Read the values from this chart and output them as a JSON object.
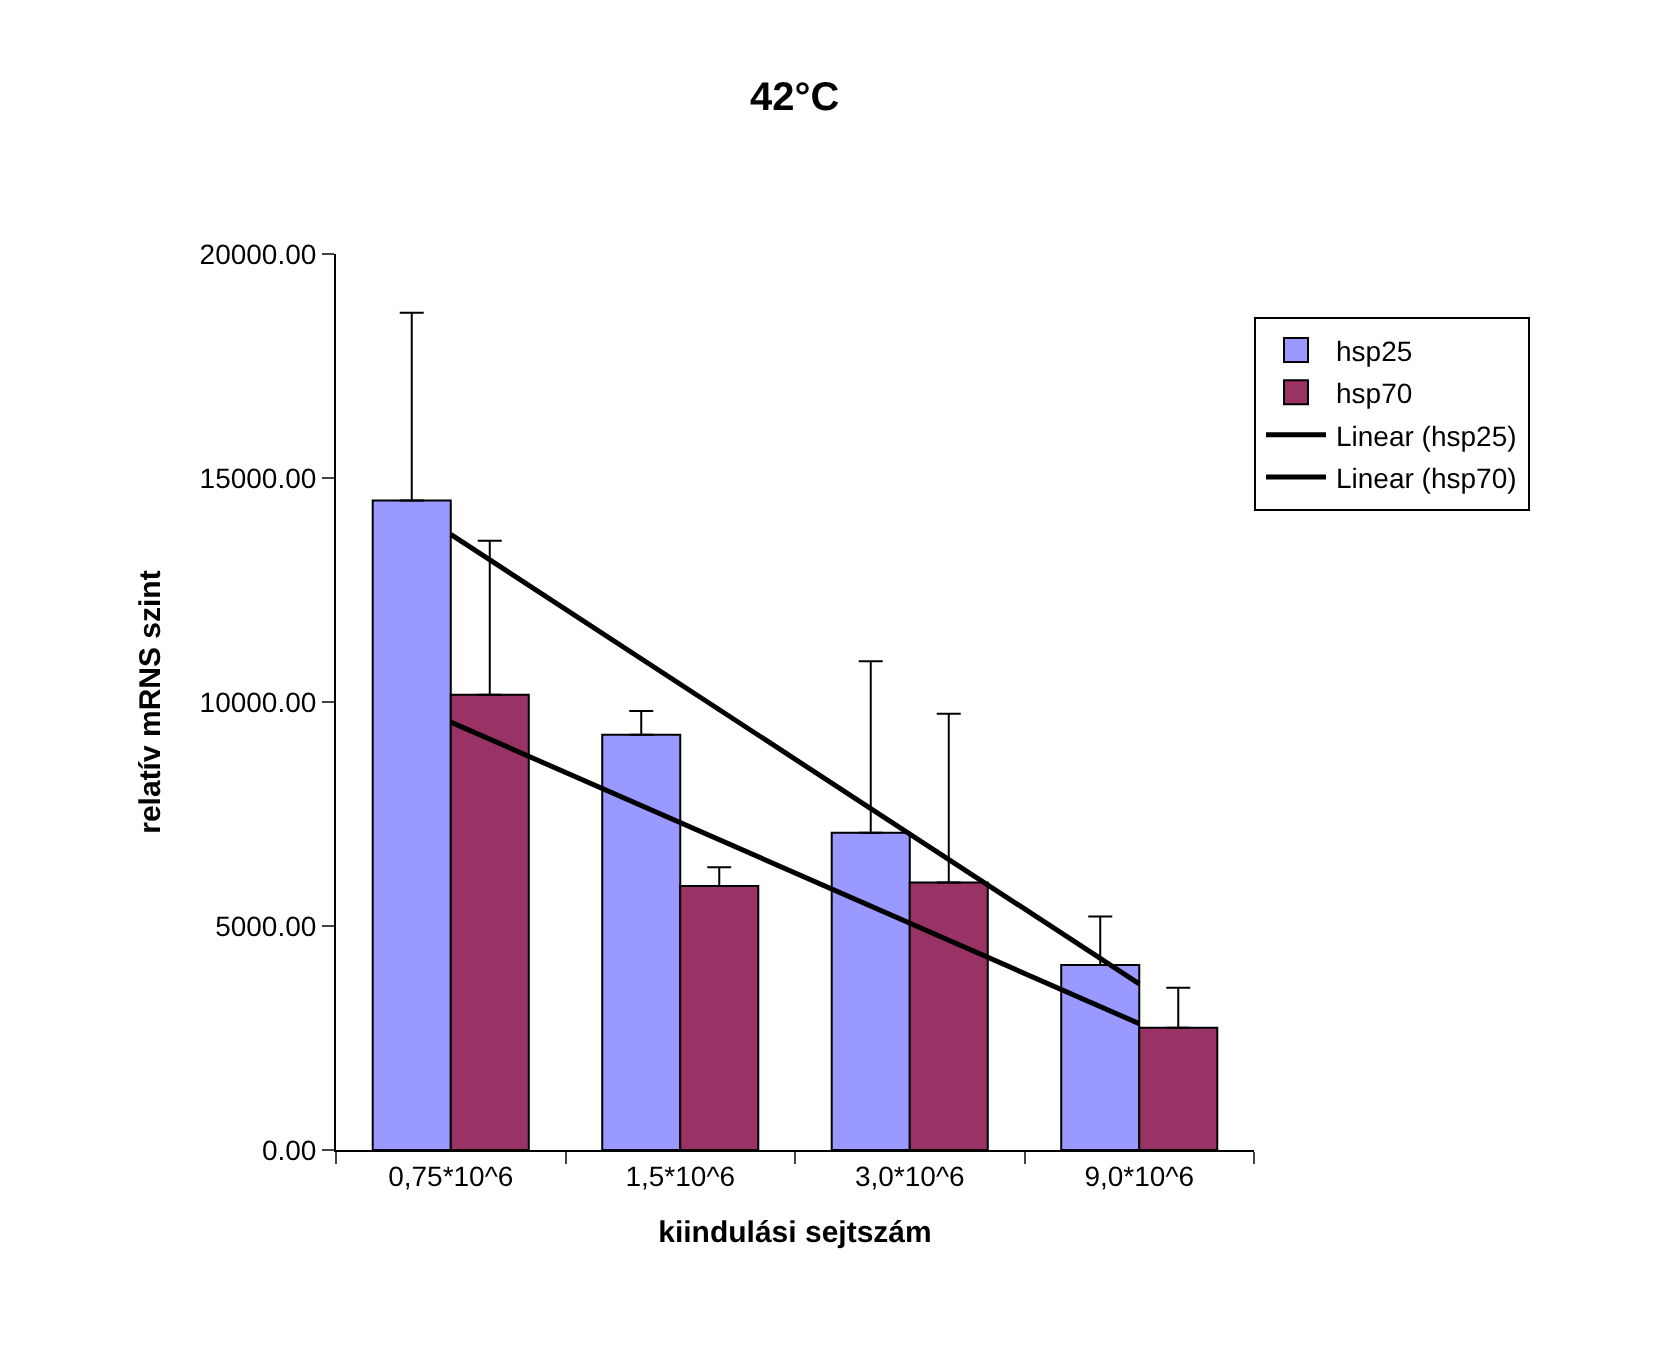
{
  "chart_data": {
    "type": "bar",
    "title": "42°C",
    "xlabel": "kiindulási sejtszám",
    "ylabel": "relatív mRNS szint",
    "categories": [
      "0,75*10^6",
      "1,5*10^6",
      "3,0*10^6",
      "9,0*10^6"
    ],
    "series": [
      {
        "name": "hsp25",
        "color": "#9999ff",
        "values": [
          14500,
          9270,
          7080,
          4130
        ],
        "errors": [
          [
            14500,
            18690
          ],
          [
            9270,
            9800
          ],
          [
            7080,
            10910
          ],
          [
            4130,
            5210
          ]
        ]
      },
      {
        "name": "hsp70",
        "color": "#993366",
        "values": [
          10160,
          5890,
          5970,
          2730
        ],
        "errors": [
          [
            10160,
            13600
          ],
          [
            5890,
            6310
          ],
          [
            5970,
            9740
          ],
          [
            2730,
            3620
          ]
        ]
      },
      {
        "name": "Linear (hsp25)",
        "type": "line",
        "color": "#000000",
        "x": [
          "0,75*10^6",
          "9,0*10^6"
        ],
        "values": [
          13740,
          3710
        ]
      },
      {
        "name": "Linear (hsp70)",
        "type": "line",
        "color": "#000000",
        "x": [
          "0,75*10^6",
          "9,0*10^6"
        ],
        "values": [
          9550,
          2820
        ]
      }
    ],
    "ylim": [
      0,
      20000
    ],
    "yticks": [
      {
        "value": 0,
        "label": "0.00"
      },
      {
        "value": 5000,
        "label": "5000.00"
      },
      {
        "value": 10000,
        "label": "10000.00"
      },
      {
        "value": 15000,
        "label": "15000.00"
      },
      {
        "value": 20000,
        "label": "20000.00"
      }
    ],
    "legend": "right",
    "marker": "none",
    "line_style": "solid"
  }
}
